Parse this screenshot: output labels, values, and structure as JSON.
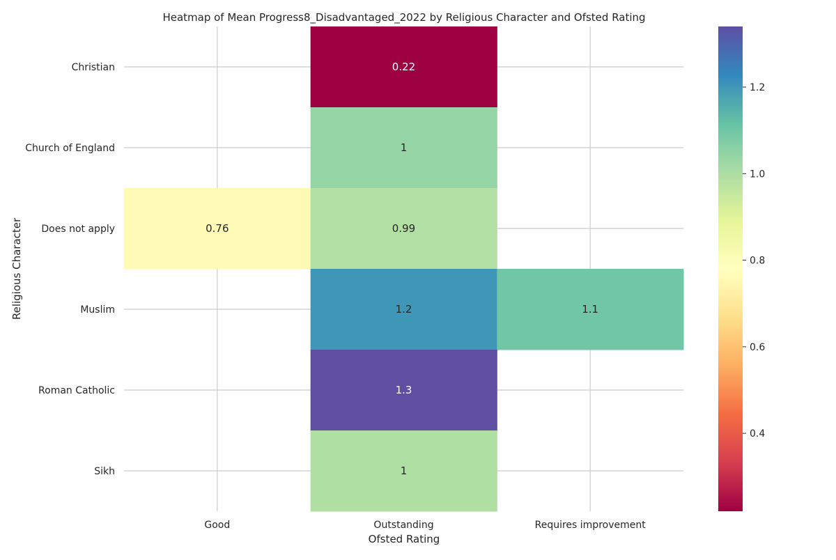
{
  "chart_data": {
    "type": "heatmap",
    "title": "Heatmap of Mean Progress8_Disadvantaged_2022 by Religious Character and Ofsted Rating",
    "xlabel": "Ofsted Rating",
    "ylabel": "Religious Character",
    "x_categories": [
      "Good",
      "Outstanding",
      "Requires improvement"
    ],
    "y_categories": [
      "Christian",
      "Church of England",
      "Does not apply",
      "Muslim",
      "Roman Catholic",
      "Sikh"
    ],
    "cells": [
      {
        "row": "Christian",
        "col": "Outstanding",
        "value": 0.22,
        "label": "0.22"
      },
      {
        "row": "Church of England",
        "col": "Outstanding",
        "value": 1.04,
        "label": "1"
      },
      {
        "row": "Does not apply",
        "col": "Good",
        "value": 0.76,
        "label": "0.76"
      },
      {
        "row": "Does not apply",
        "col": "Outstanding",
        "value": 0.99,
        "label": "0.99"
      },
      {
        "row": "Muslim",
        "col": "Outstanding",
        "value": 1.2,
        "label": "1.2"
      },
      {
        "row": "Muslim",
        "col": "Requires improvement",
        "value": 1.1,
        "label": "1.1"
      },
      {
        "row": "Roman Catholic",
        "col": "Outstanding",
        "value": 1.34,
        "label": "1.3"
      },
      {
        "row": "Sikh",
        "col": "Outstanding",
        "value": 0.995,
        "label": "1"
      }
    ],
    "colormap": "Spectral",
    "colorbar": {
      "range": [
        0.22,
        1.34
      ],
      "ticks": [
        0.4,
        0.6,
        0.8,
        1.0,
        1.2
      ],
      "tick_labels": [
        "0.4",
        "0.6",
        "0.8",
        "1.0",
        "1.2"
      ]
    },
    "grid": true
  }
}
